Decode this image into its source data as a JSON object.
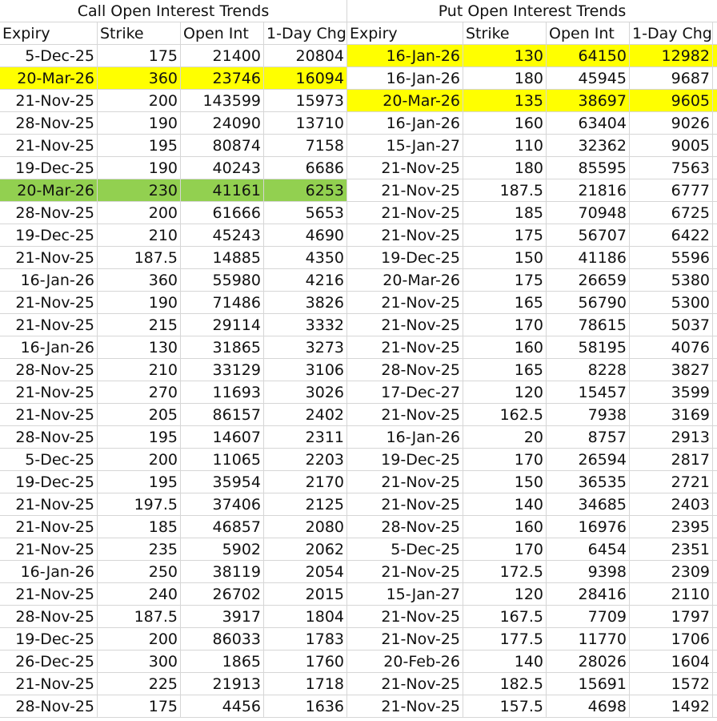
{
  "colors": {
    "yellow": "#ffff00",
    "green": "#92d050"
  },
  "call": {
    "title": "Call Open Interest Trends",
    "headers": [
      "Expiry",
      "Strike",
      "Open Int",
      "1-Day Chg"
    ],
    "rows": [
      {
        "cells": [
          "5-Dec-25",
          "175",
          "21400",
          "20804"
        ]
      },
      {
        "cells": [
          "20-Mar-26",
          "360",
          "23746",
          "16094"
        ],
        "highlight": "yellow"
      },
      {
        "cells": [
          "21-Nov-25",
          "200",
          "143599",
          "15973"
        ]
      },
      {
        "cells": [
          "28-Nov-25",
          "190",
          "24090",
          "13710"
        ]
      },
      {
        "cells": [
          "21-Nov-25",
          "195",
          "80874",
          "7158"
        ]
      },
      {
        "cells": [
          "19-Dec-25",
          "190",
          "40243",
          "6686"
        ]
      },
      {
        "cells": [
          "20-Mar-26",
          "230",
          "41161",
          "6253"
        ],
        "highlight": "green"
      },
      {
        "cells": [
          "28-Nov-25",
          "200",
          "61666",
          "5653"
        ]
      },
      {
        "cells": [
          "19-Dec-25",
          "210",
          "45243",
          "4690"
        ]
      },
      {
        "cells": [
          "21-Nov-25",
          "187.5",
          "14885",
          "4350"
        ]
      },
      {
        "cells": [
          "16-Jan-26",
          "360",
          "55980",
          "4216"
        ]
      },
      {
        "cells": [
          "21-Nov-25",
          "190",
          "71486",
          "3826"
        ]
      },
      {
        "cells": [
          "21-Nov-25",
          "215",
          "29114",
          "3332"
        ]
      },
      {
        "cells": [
          "16-Jan-26",
          "130",
          "31865",
          "3273"
        ]
      },
      {
        "cells": [
          "28-Nov-25",
          "210",
          "33129",
          "3106"
        ]
      },
      {
        "cells": [
          "21-Nov-25",
          "270",
          "11693",
          "3026"
        ]
      },
      {
        "cells": [
          "21-Nov-25",
          "205",
          "86157",
          "2402"
        ]
      },
      {
        "cells": [
          "28-Nov-25",
          "195",
          "14607",
          "2311"
        ]
      },
      {
        "cells": [
          "5-Dec-25",
          "200",
          "11065",
          "2203"
        ]
      },
      {
        "cells": [
          "19-Dec-25",
          "195",
          "35954",
          "2170"
        ]
      },
      {
        "cells": [
          "21-Nov-25",
          "197.5",
          "37406",
          "2125"
        ]
      },
      {
        "cells": [
          "21-Nov-25",
          "185",
          "46857",
          "2080"
        ]
      },
      {
        "cells": [
          "21-Nov-25",
          "235",
          "5902",
          "2062"
        ]
      },
      {
        "cells": [
          "16-Jan-26",
          "250",
          "38119",
          "2054"
        ]
      },
      {
        "cells": [
          "21-Nov-25",
          "240",
          "26702",
          "2015"
        ]
      },
      {
        "cells": [
          "28-Nov-25",
          "187.5",
          "3917",
          "1804"
        ]
      },
      {
        "cells": [
          "19-Dec-25",
          "200",
          "86033",
          "1783"
        ]
      },
      {
        "cells": [
          "26-Dec-25",
          "300",
          "1865",
          "1760"
        ]
      },
      {
        "cells": [
          "21-Nov-25",
          "225",
          "21913",
          "1718"
        ]
      },
      {
        "cells": [
          "28-Nov-25",
          "175",
          "4456",
          "1636"
        ]
      }
    ]
  },
  "put": {
    "title": "Put Open Interest Trends",
    "headers": [
      "Expiry",
      "Strike",
      "Open Int",
      "1-Day Chg"
    ],
    "rows": [
      {
        "cells": [
          "16-Jan-26",
          "130",
          "64150",
          "12982"
        ],
        "highlight": "yellow"
      },
      {
        "cells": [
          "16-Jan-26",
          "180",
          "45945",
          "9687"
        ]
      },
      {
        "cells": [
          "20-Mar-26",
          "135",
          "38697",
          "9605"
        ],
        "highlight": "yellow"
      },
      {
        "cells": [
          "16-Jan-26",
          "160",
          "63404",
          "9026"
        ]
      },
      {
        "cells": [
          "15-Jan-27",
          "110",
          "32362",
          "9005"
        ]
      },
      {
        "cells": [
          "21-Nov-25",
          "180",
          "85595",
          "7563"
        ]
      },
      {
        "cells": [
          "21-Nov-25",
          "187.5",
          "21816",
          "6777"
        ]
      },
      {
        "cells": [
          "21-Nov-25",
          "185",
          "70948",
          "6725"
        ]
      },
      {
        "cells": [
          "21-Nov-25",
          "175",
          "56707",
          "6422"
        ]
      },
      {
        "cells": [
          "19-Dec-25",
          "150",
          "41186",
          "5596"
        ]
      },
      {
        "cells": [
          "20-Mar-26",
          "175",
          "26659",
          "5380"
        ]
      },
      {
        "cells": [
          "21-Nov-25",
          "165",
          "56790",
          "5300"
        ]
      },
      {
        "cells": [
          "21-Nov-25",
          "170",
          "78615",
          "5037"
        ]
      },
      {
        "cells": [
          "21-Nov-25",
          "160",
          "58195",
          "4076"
        ]
      },
      {
        "cells": [
          "28-Nov-25",
          "165",
          "8228",
          "3827"
        ]
      },
      {
        "cells": [
          "17-Dec-27",
          "120",
          "15457",
          "3599"
        ]
      },
      {
        "cells": [
          "21-Nov-25",
          "162.5",
          "7938",
          "3169"
        ]
      },
      {
        "cells": [
          "16-Jan-26",
          "20",
          "8757",
          "2913"
        ]
      },
      {
        "cells": [
          "19-Dec-25",
          "170",
          "26594",
          "2817"
        ]
      },
      {
        "cells": [
          "21-Nov-25",
          "150",
          "36535",
          "2721"
        ]
      },
      {
        "cells": [
          "21-Nov-25",
          "140",
          "34685",
          "2403"
        ]
      },
      {
        "cells": [
          "28-Nov-25",
          "160",
          "16976",
          "2395"
        ]
      },
      {
        "cells": [
          "5-Dec-25",
          "170",
          "6454",
          "2351"
        ]
      },
      {
        "cells": [
          "21-Nov-25",
          "172.5",
          "9398",
          "2309"
        ]
      },
      {
        "cells": [
          "15-Jan-27",
          "120",
          "28416",
          "2110"
        ]
      },
      {
        "cells": [
          "21-Nov-25",
          "167.5",
          "7709",
          "1797"
        ]
      },
      {
        "cells": [
          "21-Nov-25",
          "177.5",
          "11770",
          "1706"
        ]
      },
      {
        "cells": [
          "20-Feb-26",
          "140",
          "28026",
          "1604"
        ]
      },
      {
        "cells": [
          "21-Nov-25",
          "182.5",
          "15691",
          "1572"
        ]
      },
      {
        "cells": [
          "21-Nov-25",
          "157.5",
          "4698",
          "1492"
        ]
      }
    ]
  }
}
